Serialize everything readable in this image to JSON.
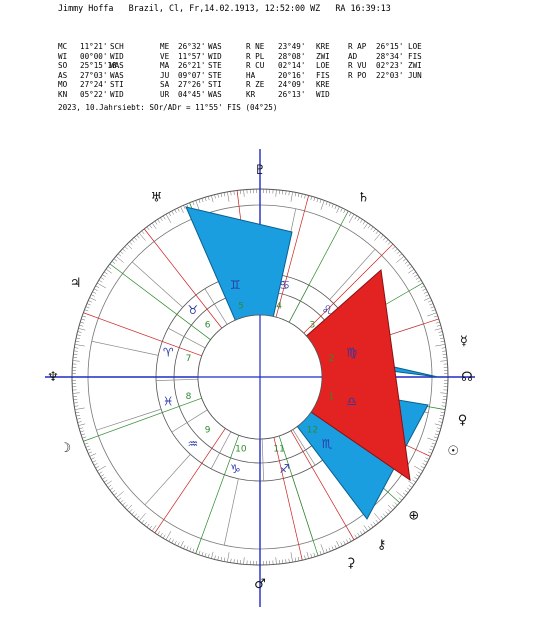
{
  "header": {
    "name": "Jimmy Hoffa",
    "location": "Brazil, Cl, Fr,14.02.1913, 12:52:00 WZ",
    "ra": "RA 16:39:13"
  },
  "table": {
    "rows": [
      [
        "MC",
        "11°21'",
        "SCH",
        "ME",
        "26°32'",
        "WAS",
        "R NE",
        "23°49'",
        "KRE",
        "R AP",
        "26°15'",
        "LOE"
      ],
      [
        "WI",
        "00°00'",
        "WID",
        "VE",
        "11°57'",
        "WID",
        "R PL",
        "28°08'",
        "ZWI",
        "AD",
        "28°34'",
        "FIS"
      ],
      [
        "SO",
        "25°15'18",
        "WAS",
        "MA",
        "26°21'",
        "STE",
        "R CU",
        "02°14'",
        "LOE",
        "R VU",
        "02°23'",
        "ZWI"
      ],
      [
        "AS",
        "27°03'",
        "WAS",
        "JU",
        "09°07'",
        "STE",
        "HA",
        "20°16'",
        "FIS",
        "R PO",
        "22°03'",
        "JUN"
      ],
      [
        "MO",
        "27°24'",
        "STI",
        "SA",
        "27°26'",
        "STI",
        "R ZE",
        "24°09'",
        "KRE",
        "",
        "",
        ""
      ],
      [
        "KN",
        "05°22'",
        "WID",
        "UR",
        "04°45'",
        "WAS",
        "KR",
        "26°13'",
        "WID",
        "",
        "",
        ""
      ]
    ],
    "subline": "2023, 10.Jahrsiebt: SOr/ADr = 11°55' FIS (04°25)"
  },
  "wheel": {
    "house_numbers": [
      "6",
      "5",
      "4",
      "3",
      "2",
      "1",
      "12",
      "11",
      "10",
      "9",
      "8",
      "7"
    ],
    "sign_glyphs": [
      "♋",
      "♌",
      "♍",
      "♎",
      "♏",
      "♐",
      "♑",
      "♒",
      "♓",
      "♈",
      "♉",
      "♊"
    ],
    "outer_glyphs": [
      "♅",
      "♃",
      "♄",
      "♇",
      "♆",
      "☊",
      "♀",
      "☿",
      "☉",
      "⊕",
      "⚷",
      "⚳",
      "♂",
      "☽"
    ],
    "colors": {
      "blue_triangle": "#1a9ee0",
      "red_triangle": "#e32222",
      "axis": "#1f2cc4",
      "house_text": "#2e8b2e",
      "sign_text": "#2d3aa8"
    }
  }
}
